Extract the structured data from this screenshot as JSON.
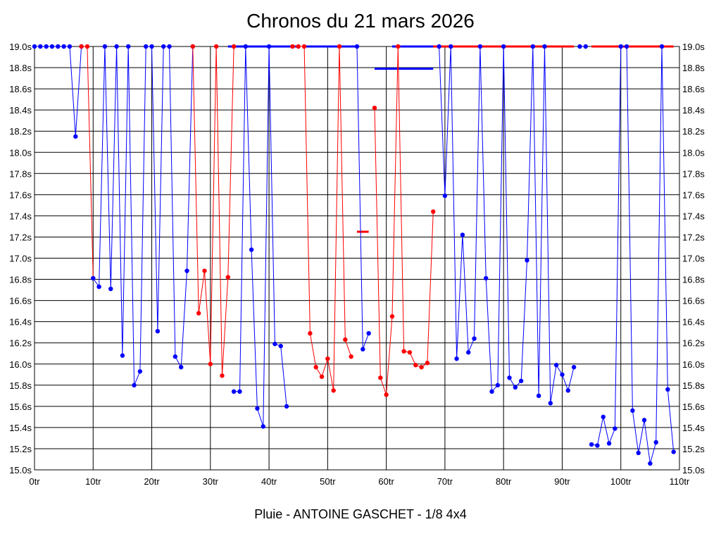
{
  "chart_data": {
    "type": "line",
    "title": "Chronos du 21 mars 2026",
    "subtitle": "Pluie - ANTOINE GASCHET - 1/8 4x4",
    "xlabel": "",
    "ylabel": "",
    "xlim": [
      0,
      110
    ],
    "ylim": [
      15.0,
      19.0
    ],
    "x_tick_values": [
      0,
      10,
      20,
      30,
      40,
      50,
      60,
      70,
      80,
      90,
      100,
      110
    ],
    "x_tick_labels": [
      "0tr",
      "10tr",
      "20tr",
      "30tr",
      "40tr",
      "50tr",
      "60tr",
      "70tr",
      "80tr",
      "90tr",
      "100tr",
      "110tr"
    ],
    "y_tick_values": [
      15.0,
      15.2,
      15.4,
      15.6,
      15.8,
      16.0,
      16.2,
      16.4,
      16.6,
      16.8,
      17.0,
      17.2,
      17.4,
      17.6,
      17.8,
      18.0,
      18.2,
      18.4,
      18.6,
      18.8,
      19.0
    ],
    "y_tick_labels": [
      "15.0s",
      "15.2s",
      "15.4s",
      "15.6s",
      "15.8s",
      "16.0s",
      "16.2s",
      "16.4s",
      "16.6s",
      "16.8s",
      "17.0s",
      "17.2s",
      "17.4s",
      "17.6s",
      "17.8s",
      "18.0s",
      "18.2s",
      "18.4s",
      "18.6s",
      "18.8s",
      "19.0s"
    ],
    "grid": true,
    "legend": "none",
    "clip_value": 19.0,
    "series": [
      {
        "color": "#0000ff",
        "points": [
          [
            0,
            19.0
          ],
          [
            1,
            19.0
          ],
          [
            2,
            19.0
          ],
          [
            3,
            19.0
          ],
          [
            4,
            19.0
          ],
          [
            5,
            19.0
          ],
          [
            6,
            19.0
          ],
          [
            7,
            18.15
          ],
          [
            8,
            19.0
          ]
        ]
      },
      {
        "color": "#ff0000",
        "points": [
          [
            8,
            19.0
          ],
          [
            9,
            19.0
          ],
          [
            10,
            16.81
          ]
        ]
      },
      {
        "color": "#0000ff",
        "points": [
          [
            10,
            16.81
          ],
          [
            11,
            16.73
          ],
          [
            12,
            19.0
          ],
          [
            13,
            16.71
          ],
          [
            14,
            19.0
          ],
          [
            15,
            16.08
          ],
          [
            16,
            19.0
          ],
          [
            17,
            15.8
          ],
          [
            18,
            15.93
          ],
          [
            19,
            19.0
          ],
          [
            20,
            19.0
          ],
          [
            21,
            16.31
          ],
          [
            22,
            19.0
          ],
          [
            23,
            19.0
          ],
          [
            24,
            16.07
          ],
          [
            25,
            15.97
          ],
          [
            26,
            16.88
          ],
          [
            27,
            19.0
          ]
        ]
      },
      {
        "color": "#ff0000",
        "points": [
          [
            27,
            19.0
          ],
          [
            28,
            16.48
          ],
          [
            29,
            16.88
          ],
          [
            30,
            16.0
          ],
          [
            31,
            19.0
          ],
          [
            32,
            15.89
          ],
          [
            33,
            16.82
          ],
          [
            34,
            19.0
          ]
        ]
      },
      {
        "color": "#0000ff",
        "points": [
          [
            34,
            15.74
          ],
          [
            35,
            15.74
          ],
          [
            36,
            19.0
          ],
          [
            37,
            17.08
          ],
          [
            38,
            15.58
          ],
          [
            39,
            15.41
          ],
          [
            40,
            19.0
          ],
          [
            41,
            16.19
          ],
          [
            42,
            16.17
          ],
          [
            43,
            15.6
          ]
        ]
      },
      {
        "color": "#ff0000",
        "points": [
          [
            44,
            19.0
          ],
          [
            45,
            19.0
          ],
          [
            46,
            19.0
          ],
          [
            47,
            16.29
          ],
          [
            48,
            15.97
          ],
          [
            49,
            15.88
          ],
          [
            50,
            16.05
          ],
          [
            51,
            15.75
          ],
          [
            52,
            19.0
          ],
          [
            53,
            16.23
          ],
          [
            54,
            16.07
          ]
        ]
      },
      {
        "color": "#0000ff",
        "points": [
          [
            55,
            19.0
          ],
          [
            56,
            16.14
          ],
          [
            57,
            16.29
          ]
        ]
      },
      {
        "color": "#ff0000",
        "points": [
          [
            58,
            18.42
          ],
          [
            59,
            15.87
          ],
          [
            60,
            15.71
          ],
          [
            61,
            16.45
          ],
          [
            62,
            19.0
          ],
          [
            63,
            16.12
          ],
          [
            64,
            16.11
          ],
          [
            65,
            15.99
          ],
          [
            66,
            15.97
          ],
          [
            67,
            16.01
          ],
          [
            68,
            17.44
          ]
        ]
      },
      {
        "color": "#0000ff",
        "points": [
          [
            69,
            19.0
          ],
          [
            70,
            17.59
          ],
          [
            71,
            19.0
          ],
          [
            72,
            16.05
          ],
          [
            73,
            17.22
          ],
          [
            74,
            16.11
          ],
          [
            75,
            16.24
          ],
          [
            76,
            19.0
          ],
          [
            77,
            16.81
          ],
          [
            78,
            15.74
          ],
          [
            79,
            15.8
          ],
          [
            80,
            19.0
          ],
          [
            81,
            15.87
          ],
          [
            82,
            15.78
          ],
          [
            83,
            15.84
          ],
          [
            84,
            16.98
          ],
          [
            85,
            19.0
          ],
          [
            86,
            15.7
          ],
          [
            87,
            19.0
          ],
          [
            88,
            15.63
          ],
          [
            89,
            15.99
          ],
          [
            90,
            15.9
          ],
          [
            91,
            15.75
          ],
          [
            92,
            15.97
          ]
        ]
      },
      {
        "color": "#0000ff",
        "points": [
          [
            93,
            19.0
          ],
          [
            94,
            19.0
          ]
        ]
      },
      {
        "color": "#0000ff",
        "points": [
          [
            95,
            15.24
          ],
          [
            96,
            15.23
          ],
          [
            97,
            15.5
          ],
          [
            98,
            15.25
          ],
          [
            99,
            15.39
          ],
          [
            100,
            19.0
          ],
          [
            101,
            19.0
          ],
          [
            102,
            15.56
          ],
          [
            103,
            15.16
          ],
          [
            104,
            15.47
          ],
          [
            105,
            15.06
          ],
          [
            106,
            15.26
          ],
          [
            107,
            19.0
          ],
          [
            108,
            15.76
          ],
          [
            109,
            15.17
          ]
        ]
      }
    ],
    "horizontal_segments": [
      {
        "color": "#0000ff",
        "x": [
          61,
          70
        ],
        "y": 19.0
      },
      {
        "color": "#0000ff",
        "x": [
          33,
          45
        ],
        "y": 19.0
      },
      {
        "color": "#0000ff",
        "x": [
          46,
          55
        ],
        "y": 19.0
      },
      {
        "color": "#ff0000",
        "x": [
          68,
          92
        ],
        "y": 19.0
      },
      {
        "color": "#ff0000",
        "x": [
          95,
          109
        ],
        "y": 19.0
      },
      {
        "color": "#0000ff",
        "x": [
          58,
          68
        ],
        "y": 18.79
      },
      {
        "color": "#ff0000",
        "x": [
          55,
          57
        ],
        "y": 17.25
      }
    ]
  }
}
